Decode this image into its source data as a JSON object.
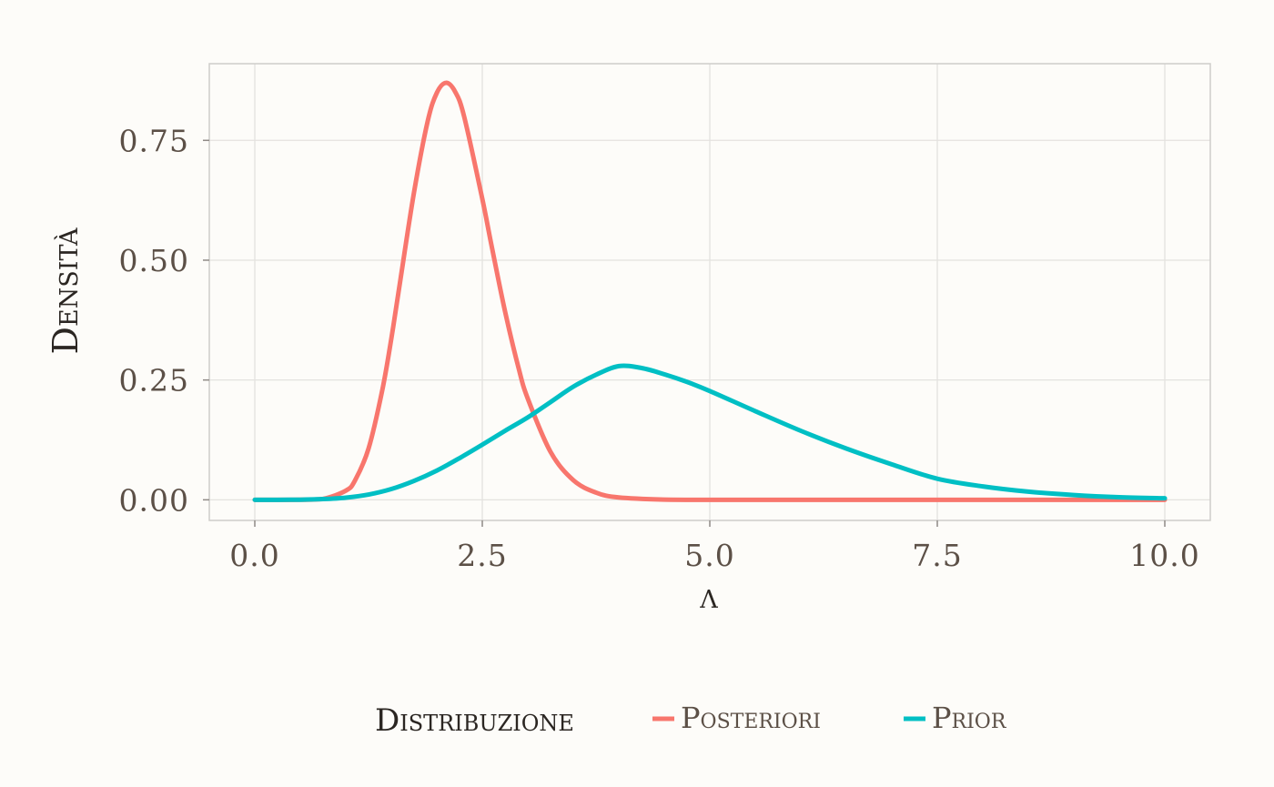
{
  "chart_data": {
    "type": "line",
    "xlabel": "λ",
    "ylabel": "Densità",
    "xlim": [
      -0.5,
      10.5
    ],
    "ylim": [
      -0.043,
      0.91
    ],
    "x_ticks": [
      0.0,
      2.5,
      5.0,
      7.5,
      10.0
    ],
    "x_tick_labels": [
      "0.0",
      "2.5",
      "5.0",
      "7.5",
      "10.0"
    ],
    "y_ticks": [
      0.0,
      0.25,
      0.5,
      0.75
    ],
    "y_tick_labels": [
      "0.00",
      "0.25",
      "0.50",
      "0.75"
    ],
    "grid": true,
    "legend_position": "bottom",
    "legend_title": "Distribuzione",
    "series": [
      {
        "name": "Posteriori",
        "color": "#f8766d",
        "x": [
          0.0,
          0.25,
          0.5,
          0.75,
          1.0,
          1.1,
          1.25,
          1.4,
          1.5,
          1.6,
          1.75,
          1.9,
          2.0,
          2.1,
          2.2,
          2.3,
          2.5,
          2.6,
          2.75,
          2.9,
          3.0,
          3.25,
          3.5,
          3.75,
          4.0,
          4.5,
          5.0,
          6.0,
          7.0,
          8.0,
          9.0,
          10.0
        ],
        "y": [
          0.0,
          0.0,
          0.0001,
          0.002,
          0.019,
          0.04,
          0.107,
          0.228,
          0.336,
          0.459,
          0.642,
          0.79,
          0.849,
          0.87,
          0.852,
          0.8,
          0.628,
          0.532,
          0.393,
          0.274,
          0.211,
          0.1,
          0.041,
          0.015,
          0.005,
          0.0005,
          0.0,
          0.0,
          0.0,
          0.0,
          0.0,
          0.0
        ]
      },
      {
        "name": "Prior",
        "color": "#00bfc4",
        "x": [
          0.0,
          0.25,
          0.5,
          0.75,
          1.0,
          1.25,
          1.5,
          1.75,
          2.0,
          2.25,
          2.5,
          2.75,
          3.0,
          3.25,
          3.5,
          3.75,
          4.0,
          4.25,
          4.5,
          4.75,
          5.0,
          5.5,
          6.0,
          6.5,
          7.0,
          7.5,
          8.0,
          8.5,
          9.0,
          9.5,
          10.0
        ],
        "y": [
          0.0,
          0.0,
          0.0003,
          0.0015,
          0.0045,
          0.011,
          0.0225,
          0.0395,
          0.061,
          0.087,
          0.115,
          0.144,
          0.172,
          0.204,
          0.236,
          0.261,
          0.279,
          0.275,
          0.262,
          0.246,
          0.227,
          0.185,
          0.144,
          0.107,
          0.074,
          0.044,
          0.028,
          0.017,
          0.01,
          0.0055,
          0.0032
        ]
      }
    ]
  }
}
